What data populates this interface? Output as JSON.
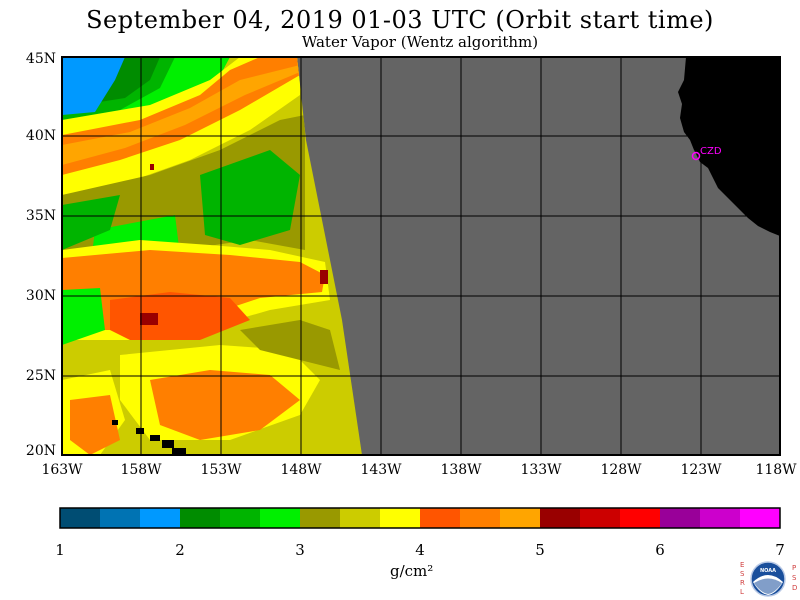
{
  "title": "September 04, 2019  01-03 UTC  (Orbit start time)",
  "subtitle": "Water Vapor (Wentz algorithm)",
  "lat_labels": [
    "45N",
    "40N",
    "35N",
    "30N",
    "25N",
    "20N"
  ],
  "lon_labels": [
    "163W",
    "158W",
    "153W",
    "148W",
    "143W",
    "138W",
    "133W",
    "128W",
    "123W",
    "118W"
  ],
  "station_label": "CZD",
  "colorbar": {
    "ticks": [
      "1",
      "2",
      "3",
      "4",
      "5",
      "6",
      "7"
    ],
    "units": "g/cm²",
    "colors": [
      "#004d73",
      "#0073b3",
      "#0099ff",
      "#008c00",
      "#00b400",
      "#00f000",
      "#999900",
      "#cccc00",
      "#ffff00",
      "#ff5500",
      "#ff7f00",
      "#ffa500",
      "#990000",
      "#cc0000",
      "#ff0000",
      "#990099",
      "#cc00cc",
      "#ff00ff"
    ]
  },
  "logo_letters": {
    "left": [
      "E",
      "S",
      "R",
      "L"
    ],
    "right": [
      "P",
      "S",
      "D"
    ],
    "center": "NOAA"
  },
  "colors": {
    "no_data": "#646464",
    "land": "#000000",
    "grid": "#000000",
    "frame": "#000000"
  }
}
